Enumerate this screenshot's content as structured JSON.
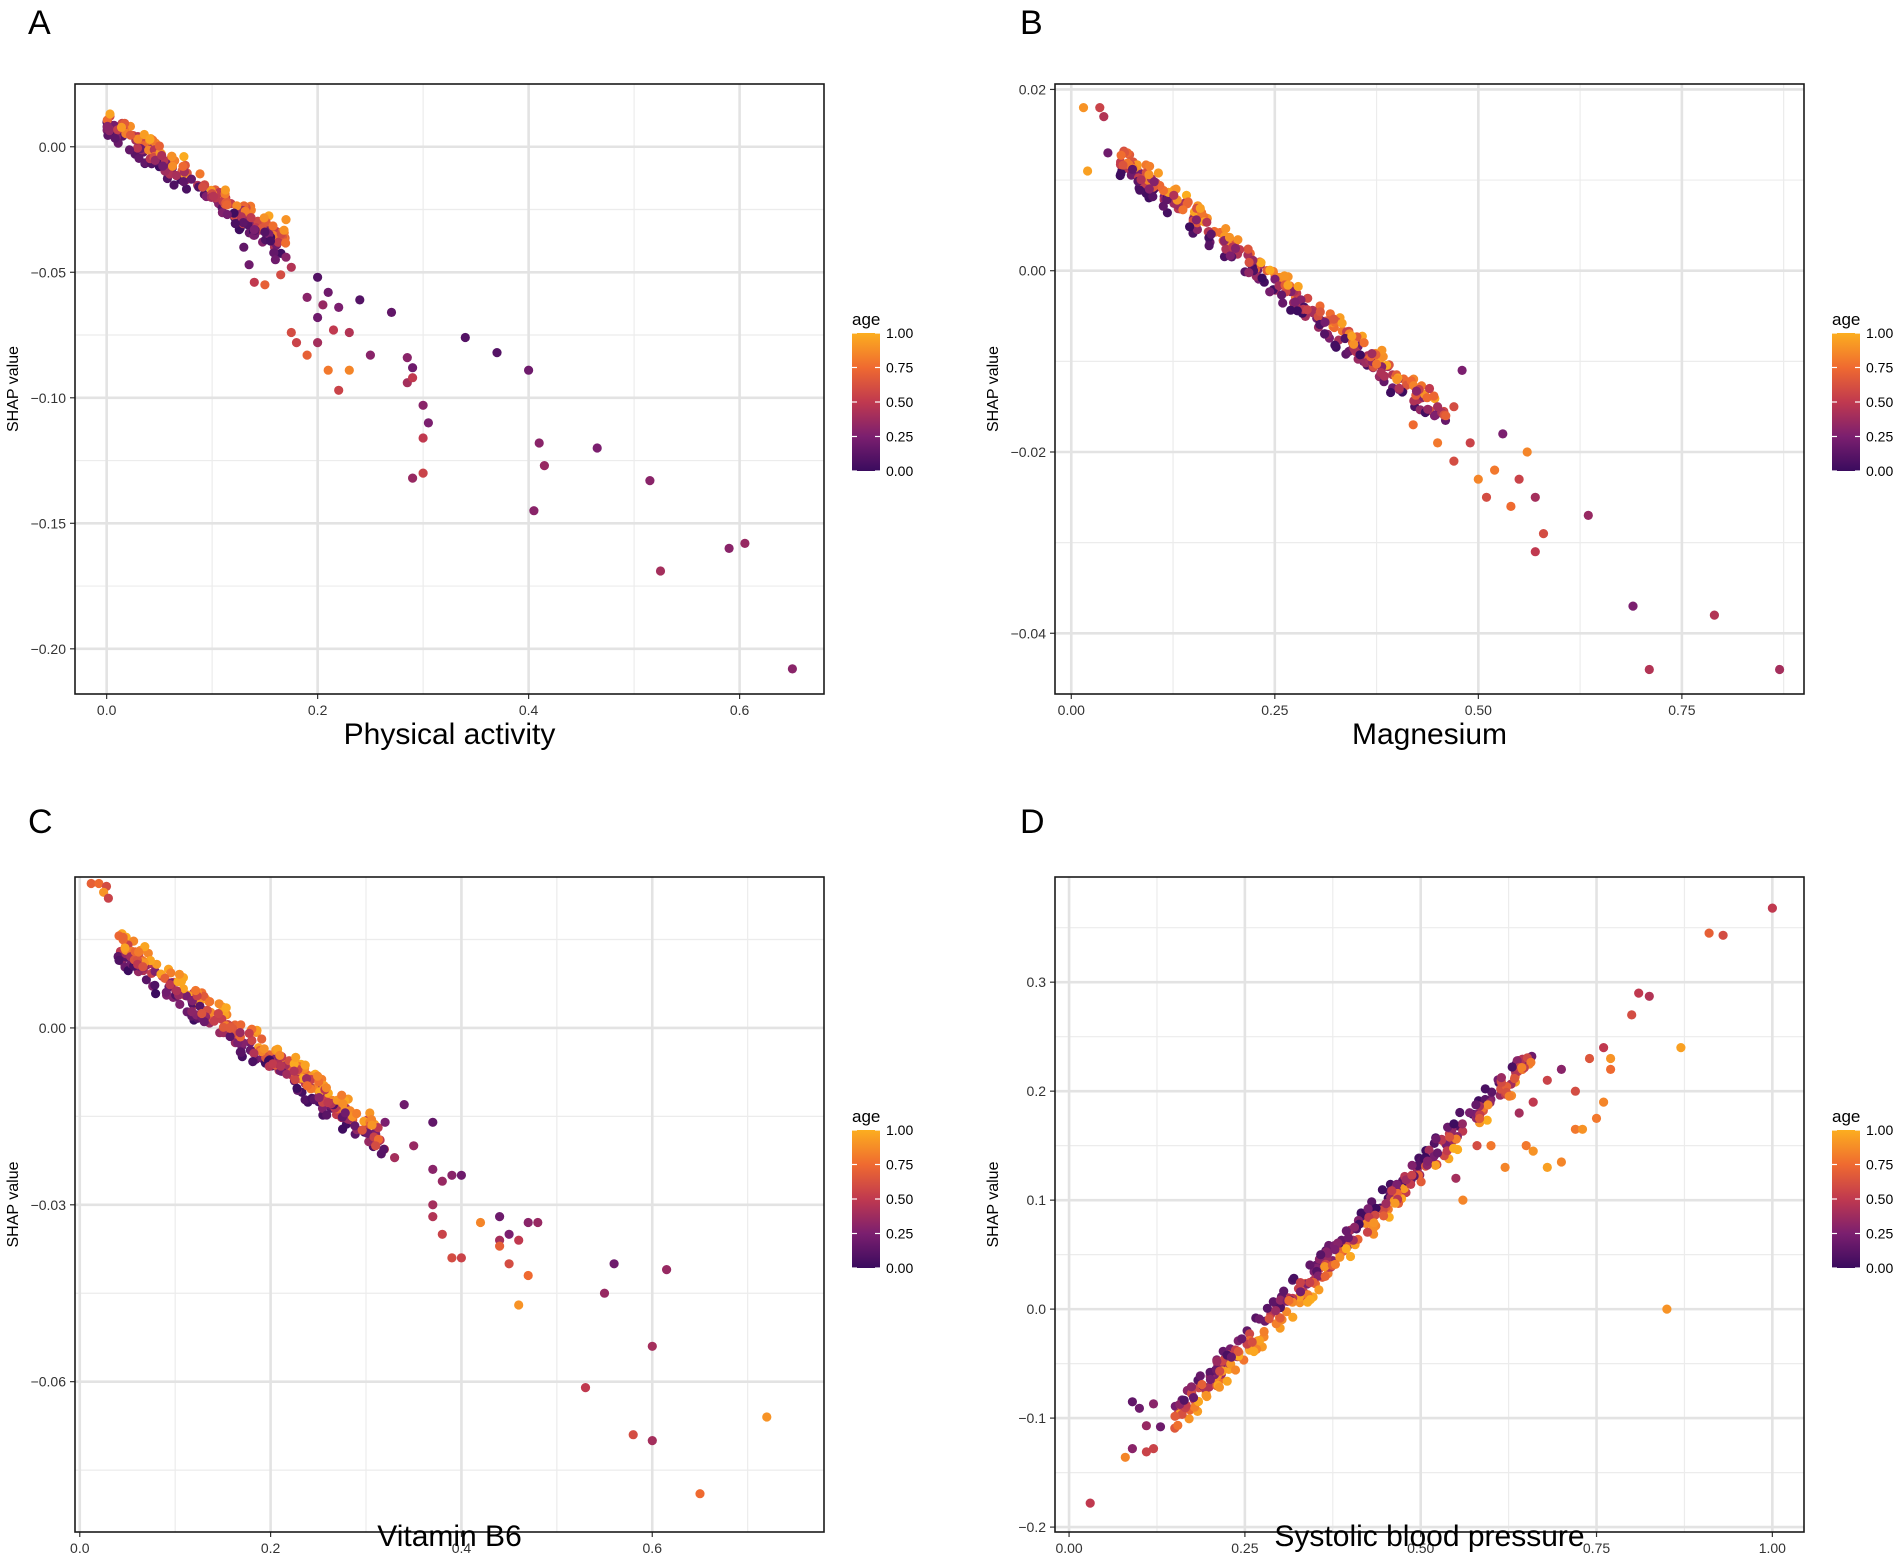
{
  "chart_data": [
    {
      "panel": "A",
      "type": "scatter",
      "title": "",
      "xlabel": "Physical activity",
      "ylabel": "SHAP value",
      "xlim": [
        -0.03,
        0.68
      ],
      "ylim": [
        -0.218,
        0.025
      ],
      "xticks": [
        0.0,
        0.2,
        0.4,
        0.6
      ],
      "xtick_labels": [
        "0.0",
        "0.2",
        "0.4",
        "0.6"
      ],
      "yticks": [
        0.0,
        -0.05,
        -0.1,
        -0.15,
        -0.2
      ],
      "ytick_labels": [
        "0.00",
        "−0.05",
        "−0.10",
        "−0.15",
        "−0.20"
      ],
      "grid": true,
      "color_legend": {
        "title": "age",
        "ticks": [
          1.0,
          0.75,
          0.5,
          0.25,
          0.0
        ],
        "tick_labels": [
          "1.00",
          "0.75",
          "0.50",
          "0.25",
          "0.00"
        ],
        "placement": "right"
      },
      "points": [
        [
          0.17,
          -0.029,
          0.9
        ],
        [
          0.2,
          -0.052,
          0.1
        ],
        [
          0.21,
          -0.058,
          0.2
        ],
        [
          0.24,
          -0.061,
          0.1
        ],
        [
          0.19,
          -0.06,
          0.3
        ],
        [
          0.205,
          -0.063,
          0.35
        ],
        [
          0.22,
          -0.064,
          0.25
        ],
        [
          0.2,
          -0.068,
          0.2
        ],
        [
          0.27,
          -0.066,
          0.15
        ],
        [
          0.215,
          -0.073,
          0.5
        ],
        [
          0.23,
          -0.074,
          0.45
        ],
        [
          0.175,
          -0.074,
          0.6
        ],
        [
          0.18,
          -0.078,
          0.55
        ],
        [
          0.2,
          -0.078,
          0.4
        ],
        [
          0.25,
          -0.083,
          0.3
        ],
        [
          0.19,
          -0.083,
          0.7
        ],
        [
          0.21,
          -0.089,
          0.8
        ],
        [
          0.23,
          -0.089,
          0.85
        ],
        [
          0.22,
          -0.097,
          0.55
        ],
        [
          0.285,
          -0.084,
          0.3
        ],
        [
          0.29,
          -0.088,
          0.2
        ],
        [
          0.285,
          -0.094,
          0.4
        ],
        [
          0.29,
          -0.092,
          0.5
        ],
        [
          0.3,
          -0.103,
          0.3
        ],
        [
          0.305,
          -0.11,
          0.25
        ],
        [
          0.3,
          -0.116,
          0.5
        ],
        [
          0.3,
          -0.13,
          0.55
        ],
        [
          0.29,
          -0.132,
          0.35
        ],
        [
          0.34,
          -0.076,
          0.1
        ],
        [
          0.37,
          -0.082,
          0.1
        ],
        [
          0.4,
          -0.089,
          0.2
        ],
        [
          0.41,
          -0.118,
          0.3
        ],
        [
          0.415,
          -0.127,
          0.35
        ],
        [
          0.405,
          -0.145,
          0.3
        ],
        [
          0.465,
          -0.12,
          0.25
        ],
        [
          0.515,
          -0.133,
          0.3
        ],
        [
          0.525,
          -0.169,
          0.4
        ],
        [
          0.59,
          -0.16,
          0.3
        ],
        [
          0.605,
          -0.158,
          0.35
        ],
        [
          0.65,
          -0.208,
          0.3
        ],
        [
          0.16,
          -0.045,
          0.2
        ],
        [
          0.17,
          -0.044,
          0.3
        ],
        [
          0.175,
          -0.048,
          0.45
        ],
        [
          0.165,
          -0.051,
          0.6
        ],
        [
          0.15,
          -0.055,
          0.7
        ],
        [
          0.14,
          -0.054,
          0.5
        ],
        [
          0.135,
          -0.047,
          0.2
        ],
        [
          0.13,
          -0.04,
          0.15
        ],
        [
          0.14,
          -0.033,
          0.25
        ],
        [
          0.15,
          -0.034,
          0.1
        ]
      ],
      "trend": {
        "x_range": [
          0.0,
          0.17
        ],
        "slope": -0.29,
        "intercept": 0.01,
        "count": 220
      }
    },
    {
      "panel": "B",
      "type": "scatter",
      "title": "",
      "xlabel": "Magnesium",
      "ylabel": "SHAP value",
      "xlim": [
        -0.02,
        0.9
      ],
      "ylim": [
        -0.0467,
        0.0206
      ],
      "xticks": [
        0.0,
        0.25,
        0.5,
        0.75
      ],
      "xtick_labels": [
        "0.00",
        "0.25",
        "0.50",
        "0.75"
      ],
      "yticks": [
        0.02,
        0.0,
        -0.02,
        -0.04
      ],
      "ytick_labels": [
        "0.02",
        "0.00",
        "−0.02",
        "−0.04"
      ],
      "grid": true,
      "color_legend": {
        "title": "age",
        "ticks": [
          1.0,
          0.75,
          0.5,
          0.25,
          0.0
        ],
        "tick_labels": [
          "1.00",
          "0.75",
          "0.50",
          "0.25",
          "0.00"
        ],
        "placement": "right"
      },
      "points": [
        [
          0.015,
          0.018,
          0.9
        ],
        [
          0.035,
          0.018,
          0.55
        ],
        [
          0.04,
          0.017,
          0.45
        ],
        [
          0.02,
          0.011,
          0.95
        ],
        [
          0.045,
          0.013,
          0.2
        ],
        [
          0.44,
          -0.013,
          0.5
        ],
        [
          0.45,
          -0.015,
          0.4
        ],
        [
          0.47,
          -0.015,
          0.6
        ],
        [
          0.48,
          -0.011,
          0.25
        ],
        [
          0.46,
          -0.016,
          0.7
        ],
        [
          0.42,
          -0.017,
          0.75
        ],
        [
          0.45,
          -0.019,
          0.8
        ],
        [
          0.47,
          -0.021,
          0.6
        ],
        [
          0.49,
          -0.019,
          0.55
        ],
        [
          0.5,
          -0.023,
          0.85
        ],
        [
          0.51,
          -0.025,
          0.6
        ],
        [
          0.52,
          -0.022,
          0.8
        ],
        [
          0.53,
          -0.018,
          0.25
        ],
        [
          0.54,
          -0.026,
          0.75
        ],
        [
          0.56,
          -0.02,
          0.85
        ],
        [
          0.55,
          -0.023,
          0.55
        ],
        [
          0.57,
          -0.025,
          0.4
        ],
        [
          0.58,
          -0.029,
          0.6
        ],
        [
          0.57,
          -0.031,
          0.5
        ],
        [
          0.635,
          -0.027,
          0.35
        ],
        [
          0.69,
          -0.037,
          0.25
        ],
        [
          0.71,
          -0.044,
          0.45
        ],
        [
          0.79,
          -0.038,
          0.45
        ],
        [
          0.87,
          -0.044,
          0.4
        ],
        [
          0.4,
          -0.012,
          0.9
        ]
      ],
      "trend": {
        "x_range": [
          0.06,
          0.46
        ],
        "slope": -0.072,
        "intercept": 0.0168,
        "count": 320
      }
    },
    {
      "panel": "C",
      "type": "scatter",
      "title": "",
      "xlabel": "Vitamin B6",
      "ylabel": "SHAP value",
      "xlim": [
        -0.005,
        0.78
      ],
      "ylim": [
        -0.0855,
        0.0256
      ],
      "xticks": [
        0.0,
        0.2,
        0.4,
        0.6
      ],
      "xtick_labels": [
        "0.0",
        "0.2",
        "0.4",
        "0.6"
      ],
      "yticks": [
        0.0,
        -0.03,
        -0.06
      ],
      "ytick_labels": [
        "0.00",
        "−0.03",
        "−0.06"
      ],
      "grid": true,
      "color_legend": {
        "title": "age",
        "ticks": [
          1.0,
          0.75,
          0.5,
          0.25,
          0.0
        ],
        "tick_labels": [
          "1.00",
          "0.75",
          "0.50",
          "0.25",
          "0.00"
        ],
        "placement": "right"
      },
      "points": [
        [
          0.012,
          0.0245,
          0.7
        ],
        [
          0.02,
          0.0245,
          0.75
        ],
        [
          0.028,
          0.024,
          0.6
        ],
        [
          0.025,
          0.023,
          0.9
        ],
        [
          0.03,
          0.022,
          0.55
        ],
        [
          0.35,
          -0.02,
          0.35
        ],
        [
          0.37,
          -0.016,
          0.15
        ],
        [
          0.37,
          -0.024,
          0.3
        ],
        [
          0.38,
          -0.026,
          0.35
        ],
        [
          0.37,
          -0.03,
          0.4
        ],
        [
          0.37,
          -0.032,
          0.45
        ],
        [
          0.39,
          -0.025,
          0.3
        ],
        [
          0.4,
          -0.025,
          0.2
        ],
        [
          0.38,
          -0.035,
          0.55
        ],
        [
          0.39,
          -0.039,
          0.6
        ],
        [
          0.4,
          -0.039,
          0.55
        ],
        [
          0.42,
          -0.033,
          0.85
        ],
        [
          0.44,
          -0.036,
          0.4
        ],
        [
          0.45,
          -0.035,
          0.25
        ],
        [
          0.45,
          -0.04,
          0.6
        ],
        [
          0.44,
          -0.037,
          0.7
        ],
        [
          0.47,
          -0.033,
          0.3
        ],
        [
          0.48,
          -0.033,
          0.35
        ],
        [
          0.47,
          -0.042,
          0.75
        ],
        [
          0.46,
          -0.047,
          0.9
        ],
        [
          0.44,
          -0.032,
          0.2
        ],
        [
          0.46,
          -0.036,
          0.5
        ],
        [
          0.53,
          -0.061,
          0.5
        ],
        [
          0.55,
          -0.045,
          0.35
        ],
        [
          0.56,
          -0.04,
          0.2
        ],
        [
          0.58,
          -0.069,
          0.6
        ],
        [
          0.6,
          -0.054,
          0.4
        ],
        [
          0.6,
          -0.07,
          0.4
        ],
        [
          0.615,
          -0.041,
          0.35
        ],
        [
          0.65,
          -0.079,
          0.75
        ],
        [
          0.72,
          -0.066,
          0.9
        ],
        [
          0.33,
          -0.022,
          0.4
        ],
        [
          0.34,
          -0.013,
          0.2
        ],
        [
          0.31,
          -0.02,
          0.6
        ],
        [
          0.32,
          -0.016,
          0.25
        ]
      ],
      "trend": {
        "x_range": [
          0.04,
          0.32
        ],
        "slope": -0.118,
        "intercept": 0.0185,
        "count": 340
      }
    },
    {
      "panel": "D",
      "type": "scatter",
      "title": "",
      "xlabel": "Systolic blood pressure",
      "ylabel": "SHAP value",
      "xlim": [
        -0.02,
        1.045
      ],
      "ylim": [
        -0.2045,
        0.3965
      ],
      "xticks": [
        0.0,
        0.25,
        0.5,
        0.75,
        1.0
      ],
      "xtick_labels": [
        "0.00",
        "0.25",
        "0.50",
        "0.75",
        "1.00"
      ],
      "yticks": [
        0.3,
        0.2,
        0.1,
        0.0,
        -0.1,
        -0.2
      ],
      "ytick_labels": [
        "0.3",
        "0.2",
        "0.1",
        "0.0",
        "−0.1",
        "−0.2"
      ],
      "grid": true,
      "color_legend": {
        "title": "age",
        "ticks": [
          1.0,
          0.75,
          0.5,
          0.25,
          0.0
        ],
        "tick_labels": [
          "1.00",
          "0.75",
          "0.50",
          "0.25",
          "0.00"
        ],
        "placement": "right"
      },
      "points": [
        [
          0.03,
          -0.178,
          0.5
        ],
        [
          0.08,
          -0.136,
          0.85
        ],
        [
          0.09,
          -0.128,
          0.3
        ],
        [
          0.11,
          -0.131,
          0.55
        ],
        [
          0.12,
          -0.128,
          0.55
        ],
        [
          0.1,
          -0.091,
          0.2
        ],
        [
          0.09,
          -0.085,
          0.15
        ],
        [
          0.12,
          -0.087,
          0.3
        ],
        [
          0.13,
          -0.108,
          0.2
        ],
        [
          0.11,
          -0.107,
          0.35
        ],
        [
          0.85,
          -0.0,
          0.9
        ],
        [
          0.62,
          0.13,
          0.85
        ],
        [
          0.65,
          0.15,
          0.8
        ],
        [
          0.66,
          0.145,
          0.9
        ],
        [
          0.68,
          0.13,
          0.95
        ],
        [
          0.7,
          0.135,
          0.85
        ],
        [
          0.72,
          0.165,
          0.8
        ],
        [
          0.73,
          0.165,
          0.9
        ],
        [
          0.75,
          0.175,
          0.8
        ],
        [
          0.76,
          0.19,
          0.85
        ],
        [
          0.77,
          0.22,
          0.75
        ],
        [
          0.76,
          0.24,
          0.5
        ],
        [
          0.74,
          0.23,
          0.65
        ],
        [
          0.77,
          0.23,
          0.9
        ],
        [
          0.8,
          0.27,
          0.6
        ],
        [
          0.81,
          0.29,
          0.5
        ],
        [
          0.825,
          0.287,
          0.45
        ],
        [
          0.87,
          0.24,
          0.95
        ],
        [
          0.91,
          0.345,
          0.7
        ],
        [
          0.93,
          0.343,
          0.6
        ],
        [
          1.0,
          0.368,
          0.5
        ],
        [
          0.72,
          0.2,
          0.6
        ],
        [
          0.7,
          0.22,
          0.3
        ],
        [
          0.68,
          0.21,
          0.55
        ],
        [
          0.66,
          0.19,
          0.5
        ],
        [
          0.64,
          0.18,
          0.4
        ],
        [
          0.58,
          0.15,
          0.6
        ],
        [
          0.6,
          0.15,
          0.8
        ],
        [
          0.55,
          0.12,
          0.4
        ],
        [
          0.56,
          0.1,
          0.85
        ]
      ],
      "trend": {
        "x_range": [
          0.15,
          0.66
        ],
        "slope": 0.646,
        "intercept": -0.195,
        "count": 360
      }
    }
  ]
}
